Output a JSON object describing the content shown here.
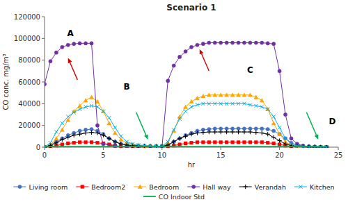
{
  "chart_data": {
    "type": "line",
    "title": "Scenario 1",
    "xlabel": "hr",
    "ylabel": "CO conc. mg/m³",
    "xlim": [
      0,
      25
    ],
    "ylim": [
      0,
      120000
    ],
    "xticks": [
      0,
      5,
      10,
      15,
      20,
      25
    ],
    "yticks": [
      0,
      20000,
      40000,
      60000,
      80000,
      100000,
      120000
    ],
    "legend": "bottom",
    "series": [
      {
        "name": "Living room",
        "color": "#4472C4",
        "marker": "circle",
        "line_style": "solid",
        "x": [
          0,
          0.5,
          1,
          1.5,
          2,
          2.5,
          3,
          3.5,
          4,
          4.5,
          5,
          5.5,
          6,
          6.5,
          7,
          7.5,
          8,
          8.5,
          9,
          9.5,
          10,
          10.5,
          11,
          11.5,
          12,
          12.5,
          13,
          13.5,
          14,
          14.5,
          15,
          15.5,
          16,
          16.5,
          17,
          17.5,
          18,
          18.5,
          19,
          19.5,
          20,
          20.5,
          21,
          21.5,
          22,
          22.5,
          23,
          23.5,
          24
        ],
        "values": [
          0,
          2000,
          5000,
          8000,
          11000,
          13000,
          15000,
          16000,
          16500,
          15000,
          12000,
          8000,
          5000,
          3000,
          2000,
          1500,
          1200,
          1000,
          900,
          800,
          700,
          2000,
          5000,
          8000,
          11000,
          13000,
          15000,
          16000,
          16500,
          17000,
          17000,
          17000,
          17000,
          17000,
          17000,
          17000,
          17000,
          17000,
          16500,
          15000,
          12000,
          8000,
          4000,
          2000,
          1200,
          800,
          500,
          200,
          0
        ]
      },
      {
        "name": "Bedroom2",
        "color": "#FF0000",
        "marker": "square",
        "line_style": "solid",
        "x": [
          0,
          0.5,
          1,
          1.5,
          2,
          2.5,
          3,
          3.5,
          4,
          4.5,
          5,
          5.5,
          6,
          6.5,
          7,
          7.5,
          8,
          8.5,
          9,
          9.5,
          10,
          10.5,
          11,
          11.5,
          12,
          12.5,
          13,
          13.5,
          14,
          14.5,
          15,
          15.5,
          16,
          16.5,
          17,
          17.5,
          18,
          18.5,
          19,
          19.5,
          20,
          20.5,
          21,
          21.5,
          22,
          22.5,
          23,
          23.5,
          24
        ],
        "values": [
          0,
          500,
          1500,
          2500,
          3500,
          4000,
          4500,
          4500,
          4500,
          4000,
          3500,
          2500,
          1500,
          800,
          500,
          300,
          200,
          150,
          100,
          100,
          100,
          500,
          1500,
          2500,
          3500,
          4000,
          4500,
          4500,
          4500,
          4500,
          4500,
          4500,
          4500,
          4500,
          4500,
          4500,
          4500,
          4500,
          4000,
          3500,
          2500,
          1500,
          800,
          400,
          200,
          100,
          50,
          20,
          0
        ]
      },
      {
        "name": "Bedroom",
        "color": "#FFA500",
        "marker": "triangle",
        "line_style": "solid",
        "x": [
          0,
          0.5,
          1,
          1.5,
          2,
          2.5,
          3,
          3.5,
          4,
          4.5,
          5,
          5.5,
          6,
          6.5,
          7,
          7.5,
          8,
          8.5,
          9,
          9.5,
          10,
          10.5,
          11,
          11.5,
          12,
          12.5,
          13,
          13.5,
          14,
          14.5,
          15,
          15.5,
          16,
          16.5,
          17,
          17.5,
          18,
          18.5,
          19,
          19.5,
          20,
          20.5,
          21,
          21.5,
          22,
          22.5,
          23,
          23.5,
          24
        ],
        "values": [
          0,
          2000,
          8000,
          16000,
          25000,
          33000,
          38000,
          43000,
          46000,
          42000,
          33000,
          22000,
          13000,
          7000,
          4000,
          2500,
          1800,
          1400,
          1100,
          900,
          700,
          4000,
          15000,
          28000,
          37000,
          42000,
          45000,
          47000,
          48000,
          48000,
          48000,
          48000,
          48000,
          48000,
          48000,
          48000,
          46000,
          43000,
          35000,
          22000,
          12000,
          5000,
          2000,
          1000,
          500,
          200,
          100,
          30,
          0
        ]
      },
      {
        "name": "Hall way",
        "color": "#7030A0",
        "marker": "circle",
        "line_style": "solid",
        "x": [
          0,
          0.5,
          1,
          1.5,
          2,
          2.5,
          3,
          3.5,
          4,
          4.5,
          5,
          6,
          7,
          8,
          9,
          10,
          10.5,
          11,
          11.5,
          12,
          12.5,
          13,
          13.5,
          14,
          14.5,
          15,
          15.5,
          16,
          16.5,
          17,
          17.5,
          18,
          18.5,
          19,
          19.5,
          20,
          20.5,
          21,
          21.5,
          22,
          22.5,
          23,
          23.5,
          24
        ],
        "values": [
          58000,
          79000,
          87000,
          92000,
          94000,
          95000,
          95500,
          95500,
          95500,
          20000,
          3000,
          1000,
          600,
          400,
          300,
          200,
          61000,
          75000,
          83000,
          88000,
          92000,
          94000,
          95000,
          96000,
          96000,
          96000,
          96000,
          96000,
          96000,
          96000,
          96000,
          96000,
          96000,
          95500,
          95000,
          70000,
          30000,
          8000,
          3000,
          1200,
          600,
          300,
          100,
          0
        ]
      },
      {
        "name": "Verandah",
        "color": "#000000",
        "marker": "plus",
        "line_style": "solid",
        "x": [
          0,
          0.5,
          1,
          1.5,
          2,
          2.5,
          3,
          3.5,
          4,
          4.5,
          5,
          5.5,
          6,
          6.5,
          7,
          7.5,
          8,
          8.5,
          9,
          9.5,
          10,
          10.5,
          11,
          11.5,
          12,
          12.5,
          13,
          13.5,
          14,
          14.5,
          15,
          15.5,
          16,
          16.5,
          17,
          17.5,
          18,
          18.5,
          19,
          19.5,
          20,
          20.5,
          21,
          21.5,
          22,
          22.5,
          23,
          23.5,
          24
        ],
        "values": [
          0,
          1500,
          4000,
          7000,
          9000,
          11000,
          12000,
          13000,
          13500,
          13000,
          11000,
          8000,
          5000,
          3000,
          2000,
          1500,
          1200,
          1000,
          900,
          800,
          700,
          2000,
          5000,
          8000,
          10000,
          12000,
          13000,
          13500,
          14000,
          14000,
          14000,
          14000,
          14000,
          14000,
          14000,
          14000,
          13500,
          13000,
          12000,
          9000,
          6000,
          3000,
          1500,
          700,
          300,
          150,
          60,
          20,
          0
        ]
      },
      {
        "name": "Kitchen",
        "color": "#00B0F0",
        "marker": "x",
        "line_style": "solid",
        "x": [
          0,
          0.5,
          1,
          1.5,
          2,
          2.5,
          3,
          3.5,
          4,
          4.5,
          5,
          5.5,
          6,
          6.5,
          7,
          7.5,
          8,
          8.5,
          9,
          9.5,
          10,
          10.5,
          11,
          11.5,
          12,
          12.5,
          13,
          13.5,
          14,
          14.5,
          15,
          15.5,
          16,
          16.5,
          17,
          17.5,
          18,
          18.5,
          19,
          19.5,
          20,
          20.5,
          21,
          21.5,
          22,
          22.5,
          23,
          23.5,
          24
        ],
        "values": [
          0,
          4000,
          14000,
          22000,
          28000,
          32000,
          35000,
          37000,
          38000,
          37000,
          33000,
          27000,
          18000,
          10000,
          5000,
          3000,
          2000,
          1500,
          1200,
          1000,
          800,
          5000,
          16000,
          26000,
          33000,
          37000,
          39000,
          40000,
          40000,
          40000,
          40000,
          40000,
          40000,
          40000,
          40000,
          39000,
          38000,
          37000,
          35000,
          28000,
          18000,
          8000,
          3000,
          1200,
          500,
          200,
          80,
          20,
          0
        ]
      },
      {
        "name": "CO Indoor Std",
        "color": "#00B050",
        "line_style": "solid",
        "x": [
          0,
          24
        ],
        "values": [
          500,
          500
        ]
      }
    ],
    "annotations": [
      {
        "text": "A",
        "x": 2.2,
        "y": 101000
      },
      {
        "text": "B",
        "x": 7.0,
        "y": 52000
      },
      {
        "text": "C",
        "x": 17.5,
        "y": 67000
      },
      {
        "text": "D",
        "x": 24.5,
        "y": 20000
      }
    ],
    "arrows": [
      {
        "color": "#CC0000",
        "x_tail": 2.8,
        "y_tail": 62000,
        "x_head": 2.0,
        "y_head": 82000
      },
      {
        "color": "#CC0000",
        "x_tail": 14.0,
        "y_tail": 70000,
        "x_head": 13.2,
        "y_head": 90000
      },
      {
        "color": "#00B050",
        "x_tail": 7.8,
        "y_tail": 32000,
        "x_head": 8.8,
        "y_head": 7000
      },
      {
        "color": "#00B050",
        "x_tail": 22.3,
        "y_tail": 32000,
        "x_head": 23.3,
        "y_head": 7000
      }
    ]
  }
}
